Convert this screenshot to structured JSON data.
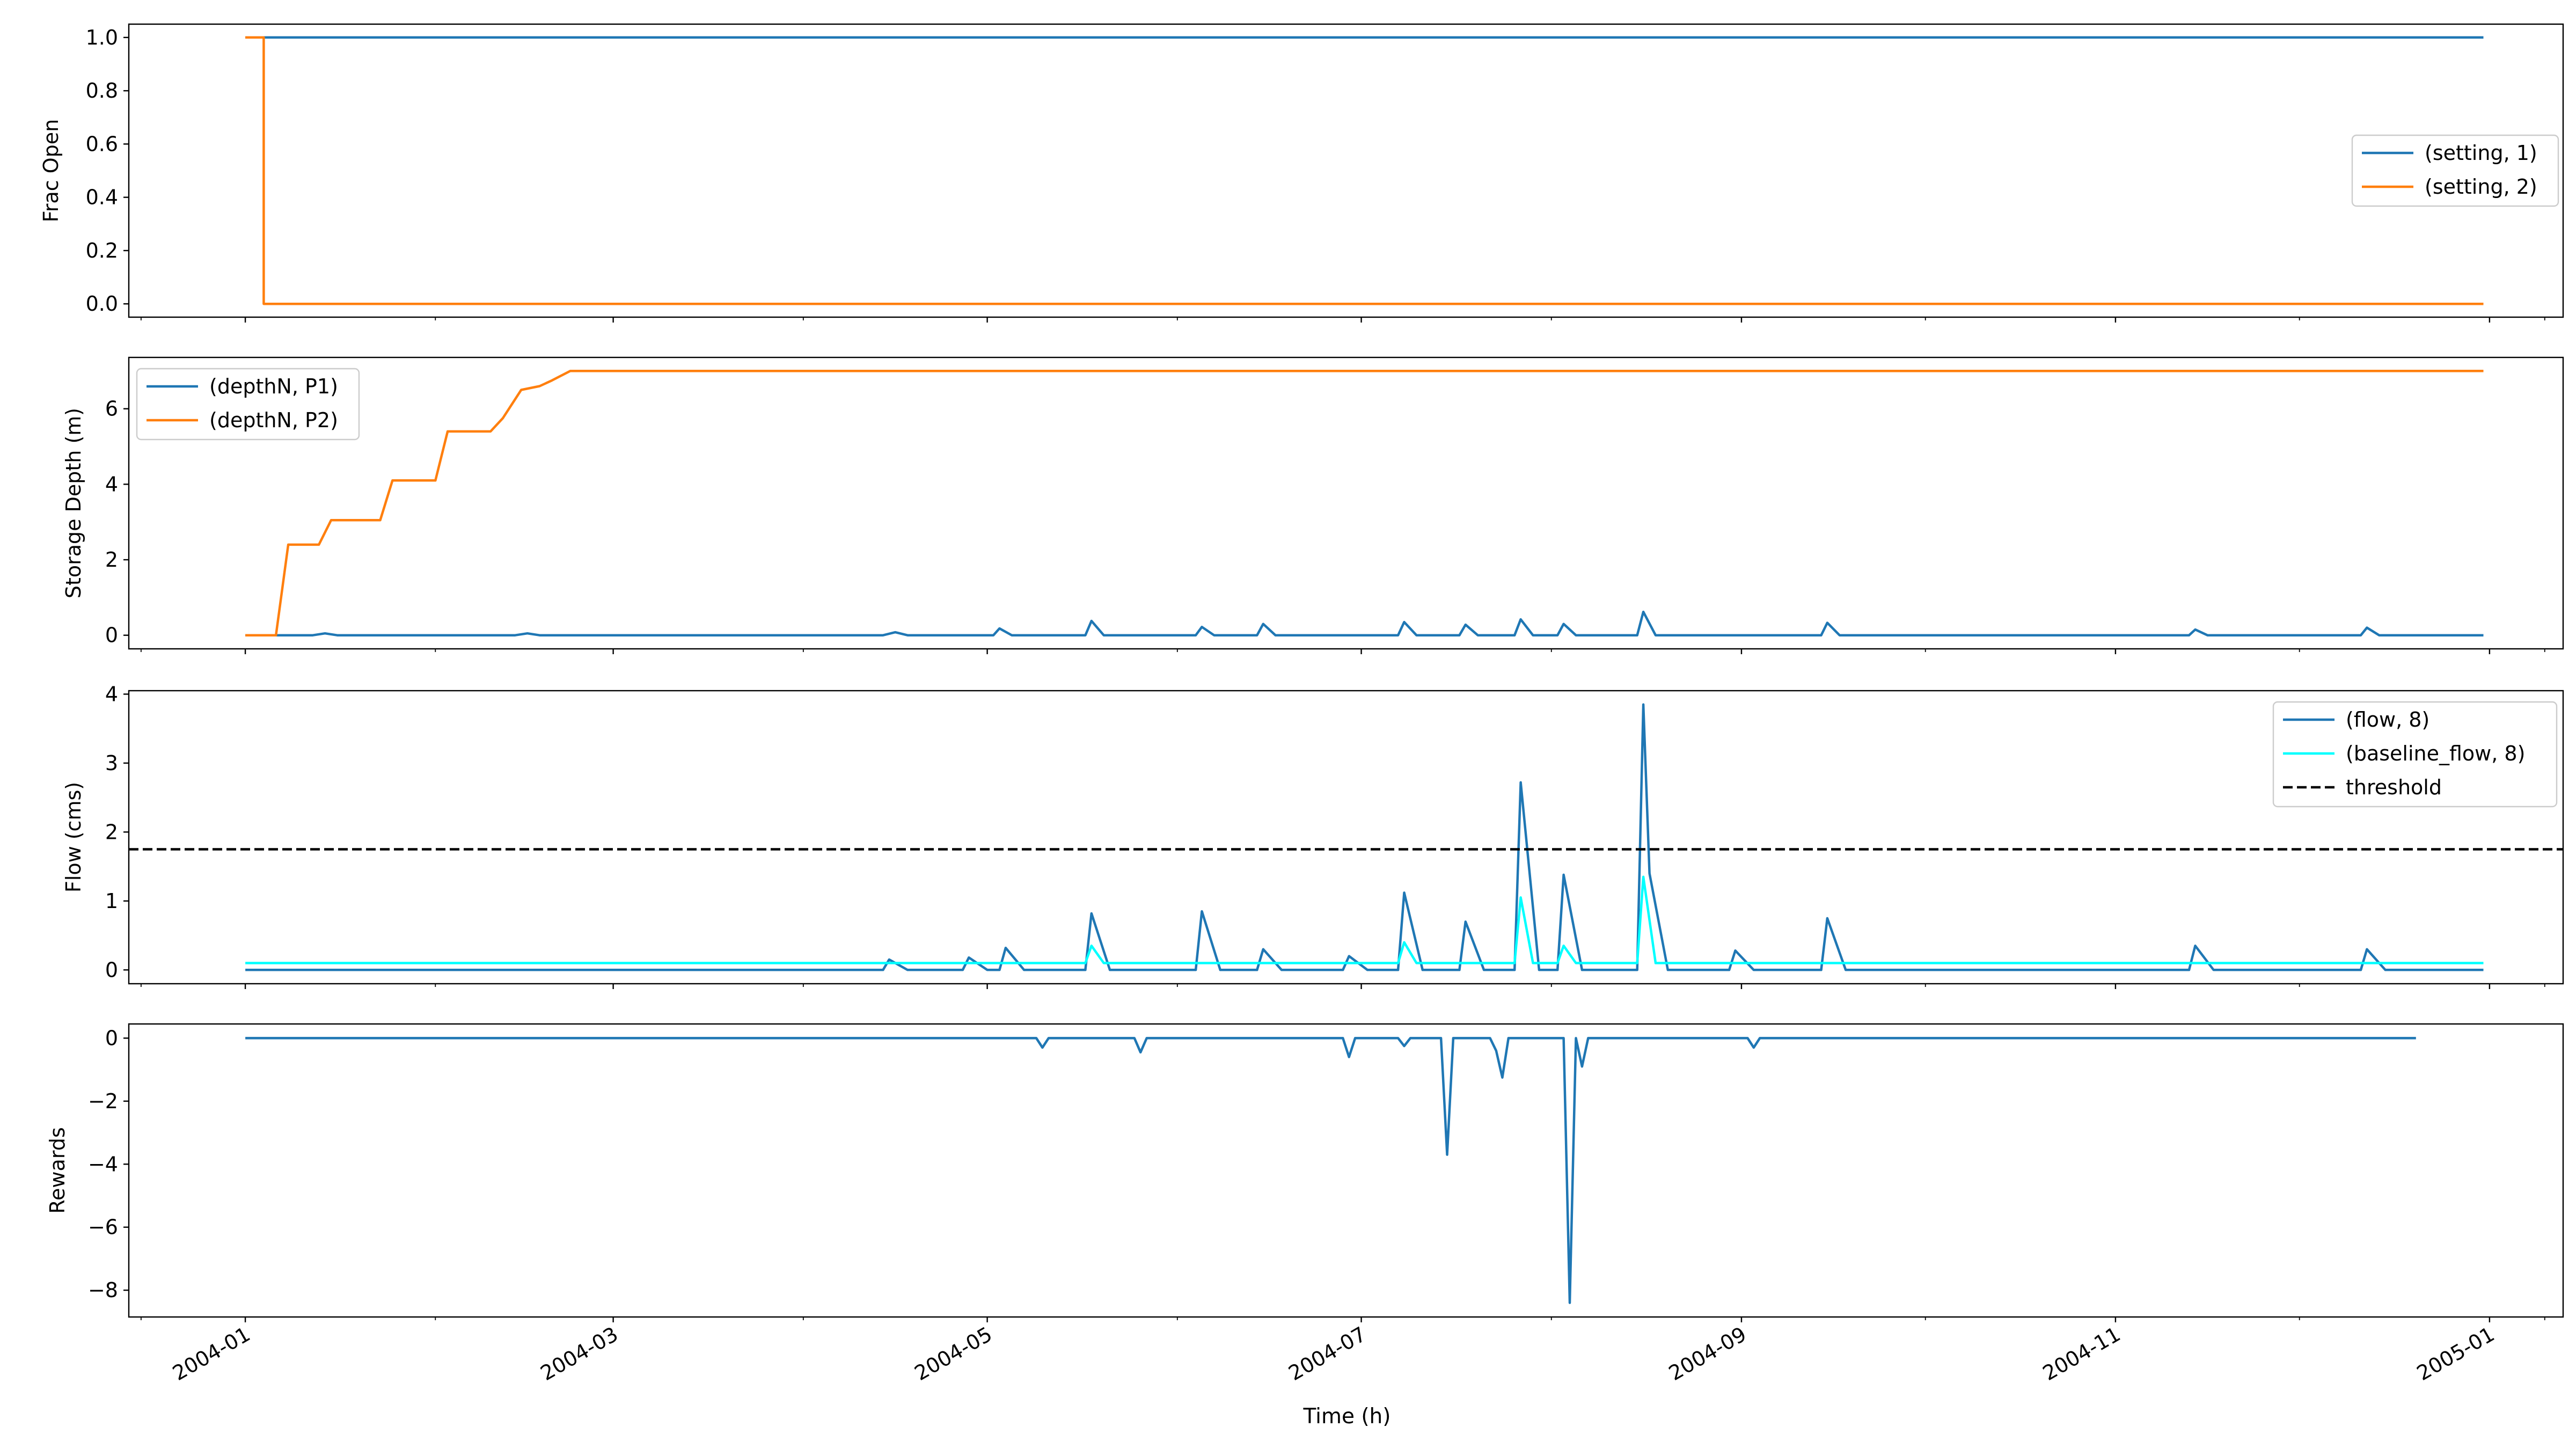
{
  "figure": {
    "xlabel": "Time (h)"
  },
  "chart_data": [
    {
      "type": "line",
      "ylabel": "Frac Open",
      "xlim": [
        "2003-12-13",
        "2005-01-13"
      ],
      "ylim": [
        -0.05,
        1.05
      ],
      "yticks": [
        0.0,
        0.2,
        0.4,
        0.6,
        0.8,
        1.0
      ],
      "ytick_labels": [
        "0.0",
        "0.2",
        "0.4",
        "0.6",
        "0.8",
        "1.0"
      ],
      "grid": false,
      "legend": {
        "placement": "center-right",
        "entries": [
          "(setting, 1)",
          "(setting, 2)"
        ]
      },
      "series": [
        {
          "name": "(setting, 1)",
          "color": "#1f77b4",
          "dash": "solid",
          "x": [
            "2004-01-01",
            "2004-12-31"
          ],
          "y": [
            1.0,
            1.0
          ]
        },
        {
          "name": "(setting, 2)",
          "color": "#ff7f0e",
          "dash": "solid",
          "x": [
            "2004-01-01",
            "2004-01-04",
            "2004-01-04",
            "2004-12-31"
          ],
          "y": [
            1.0,
            1.0,
            0.0,
            0.0
          ]
        }
      ]
    },
    {
      "type": "line",
      "ylabel": "Storage Depth (m)",
      "xlim": [
        "2003-12-13",
        "2005-01-13"
      ],
      "ylim": [
        -0.36,
        7.36
      ],
      "yticks": [
        0,
        2,
        4,
        6
      ],
      "ytick_labels": [
        "0",
        "2",
        "4",
        "6"
      ],
      "grid": false,
      "legend": {
        "placement": "upper-left",
        "entries": [
          "(depthN, P1)",
          "(depthN, P2)"
        ]
      },
      "series": [
        {
          "name": "(depthN, P1)",
          "color": "#1f77b4",
          "dash": "solid",
          "x": [
            "2004-01-01",
            "2004-01-12",
            "2004-01-14",
            "2004-01-16",
            "2004-02-14",
            "2004-02-16",
            "2004-02-18",
            "2004-04-14",
            "2004-04-16",
            "2004-04-18",
            "2004-05-02",
            "2004-05-03",
            "2004-05-05",
            "2004-05-17",
            "2004-05-18",
            "2004-05-20",
            "2004-06-04",
            "2004-06-05",
            "2004-06-07",
            "2004-06-14",
            "2004-06-15",
            "2004-06-17",
            "2004-07-07",
            "2004-07-08",
            "2004-07-10",
            "2004-07-17",
            "2004-07-18",
            "2004-07-20",
            "2004-07-26",
            "2004-07-27",
            "2004-07-29",
            "2004-08-02",
            "2004-08-03",
            "2004-08-05",
            "2004-08-15",
            "2004-08-16",
            "2004-08-18",
            "2004-09-14",
            "2004-09-15",
            "2004-09-17",
            "2004-11-13",
            "2004-11-14",
            "2004-11-16",
            "2004-12-11",
            "2004-12-12",
            "2004-12-14",
            "2004-12-31"
          ],
          "y": [
            0,
            0,
            0.05,
            0,
            0,
            0.05,
            0,
            0,
            0.08,
            0,
            0,
            0.18,
            0,
            0,
            0.38,
            0,
            0,
            0.22,
            0,
            0,
            0.3,
            0,
            0,
            0.35,
            0,
            0,
            0.28,
            0,
            0,
            0.42,
            0,
            0,
            0.3,
            0,
            0,
            0.62,
            0,
            0,
            0.33,
            0,
            0,
            0.15,
            0,
            0,
            0.2,
            0,
            0
          ]
        },
        {
          "name": "(depthN, P2)",
          "color": "#ff7f0e",
          "dash": "solid",
          "x": [
            "2004-01-01",
            "2004-01-06",
            "2004-01-08",
            "2004-01-13",
            "2004-01-15",
            "2004-01-23",
            "2004-01-25",
            "2004-02-01",
            "2004-02-03",
            "2004-02-10",
            "2004-02-12",
            "2004-02-15",
            "2004-02-18",
            "2004-02-20",
            "2004-02-23",
            "2004-12-31"
          ],
          "y": [
            0,
            0,
            2.4,
            2.4,
            3.05,
            3.05,
            4.1,
            4.1,
            5.4,
            5.4,
            5.75,
            6.5,
            6.6,
            6.75,
            7.0,
            7.0
          ]
        }
      ]
    },
    {
      "type": "line",
      "ylabel": "Flow (cms)",
      "xlim": [
        "2003-12-13",
        "2005-01-13"
      ],
      "ylim": [
        -0.2,
        4.05
      ],
      "yticks": [
        0,
        1,
        2,
        3,
        4
      ],
      "ytick_labels": [
        "0",
        "1",
        "2",
        "3",
        "4"
      ],
      "grid": false,
      "legend": {
        "placement": "upper-right",
        "entries": [
          "(flow, 8)",
          "(baseline_flow, 8)",
          "threshold"
        ]
      },
      "series": [
        {
          "name": "(flow, 8)",
          "color": "#1f77b4",
          "dash": "solid",
          "x": [
            "2004-01-01",
            "2004-04-14",
            "2004-04-15",
            "2004-04-18",
            "2004-04-27",
            "2004-04-28",
            "2004-05-01",
            "2004-05-03",
            "2004-05-04",
            "2004-05-07",
            "2004-05-17",
            "2004-05-18",
            "2004-05-21",
            "2004-06-04",
            "2004-06-05",
            "2004-06-08",
            "2004-06-14",
            "2004-06-15",
            "2004-06-18",
            "2004-06-28",
            "2004-06-29",
            "2004-07-02",
            "2004-07-07",
            "2004-07-08",
            "2004-07-11",
            "2004-07-17",
            "2004-07-18",
            "2004-07-21",
            "2004-07-26",
            "2004-07-27",
            "2004-07-30",
            "2004-08-02",
            "2004-08-03",
            "2004-08-06",
            "2004-08-15",
            "2004-08-16",
            "2004-08-17",
            "2004-08-20",
            "2004-08-30",
            "2004-08-31",
            "2004-09-03",
            "2004-09-14",
            "2004-09-15",
            "2004-09-18",
            "2004-11-13",
            "2004-11-14",
            "2004-11-17",
            "2004-12-11",
            "2004-12-12",
            "2004-12-15",
            "2004-12-31"
          ],
          "y": [
            0.0,
            0.0,
            0.15,
            0.0,
            0.0,
            0.18,
            0.0,
            0.0,
            0.32,
            0.0,
            0.0,
            0.82,
            0.0,
            0.0,
            0.85,
            0.0,
            0.0,
            0.3,
            0.0,
            0.0,
            0.2,
            0.0,
            0.0,
            1.12,
            0.0,
            0.0,
            0.7,
            0.0,
            0.0,
            2.72,
            0.0,
            0.0,
            1.38,
            0.0,
            0.0,
            3.85,
            1.4,
            0.0,
            0.0,
            0.28,
            0.0,
            0.0,
            0.75,
            0.0,
            0.0,
            0.35,
            0.0,
            0.0,
            0.3,
            0.0,
            0.0
          ]
        },
        {
          "name": "(baseline_flow, 8)",
          "color": "#00ffff",
          "dash": "solid",
          "x": [
            "2004-01-01",
            "2004-05-17",
            "2004-05-18",
            "2004-05-20",
            "2004-07-07",
            "2004-07-08",
            "2004-07-10",
            "2004-07-26",
            "2004-07-27",
            "2004-07-29",
            "2004-08-02",
            "2004-08-03",
            "2004-08-05",
            "2004-08-15",
            "2004-08-16",
            "2004-08-18",
            "2004-12-31"
          ],
          "y": [
            0.1,
            0.1,
            0.35,
            0.1,
            0.1,
            0.4,
            0.1,
            0.1,
            1.05,
            0.1,
            0.1,
            0.35,
            0.1,
            0.1,
            1.35,
            0.1,
            0.1
          ]
        },
        {
          "name": "threshold",
          "color": "#000000",
          "dash": "dashed",
          "x": [
            "2003-12-13",
            "2005-01-13"
          ],
          "y": [
            1.75,
            1.75
          ]
        }
      ]
    },
    {
      "type": "line",
      "ylabel": "Rewards",
      "xlim": [
        "2003-12-13",
        "2005-01-13"
      ],
      "ylim": [
        -8.85,
        0.45
      ],
      "yticks": [
        0,
        -2,
        -4,
        -6,
        -8
      ],
      "ytick_labels": [
        "0",
        "−2",
        "−4",
        "−6",
        "−8"
      ],
      "grid": false,
      "legend": null,
      "series": [
        {
          "name": "",
          "color": "#1f77b4",
          "dash": "solid",
          "x": [
            "2004-01-01",
            "2004-05-09",
            "2004-05-10",
            "2004-05-11",
            "2004-05-25",
            "2004-05-26",
            "2004-05-27",
            "2004-06-28",
            "2004-06-29",
            "2004-06-30",
            "2004-07-07",
            "2004-07-08",
            "2004-07-09",
            "2004-07-14",
            "2004-07-15",
            "2004-07-16",
            "2004-07-22",
            "2004-07-23",
            "2004-07-24",
            "2004-07-25",
            "2004-08-03",
            "2004-08-04",
            "2004-08-05",
            "2004-08-06",
            "2004-08-07",
            "2004-09-02",
            "2004-09-03",
            "2004-09-04",
            "2004-12-20"
          ],
          "y": [
            0,
            0,
            -0.3,
            0,
            0,
            -0.45,
            0,
            0,
            -0.6,
            0,
            0,
            -0.25,
            0,
            0,
            -3.7,
            0,
            0,
            -0.4,
            -1.25,
            0,
            0,
            -8.4,
            0,
            -0.9,
            0,
            0,
            -0.3,
            0,
            0
          ]
        }
      ]
    }
  ],
  "xaxis": {
    "tick_dates": [
      "2004-01-01",
      "2004-03-01",
      "2004-05-01",
      "2004-07-01",
      "2004-09-01",
      "2004-11-01",
      "2005-01-01"
    ],
    "tick_labels": [
      "2004-01",
      "2004-03",
      "2004-05",
      "2004-07",
      "2004-09",
      "2004-11",
      "2005-01"
    ]
  }
}
